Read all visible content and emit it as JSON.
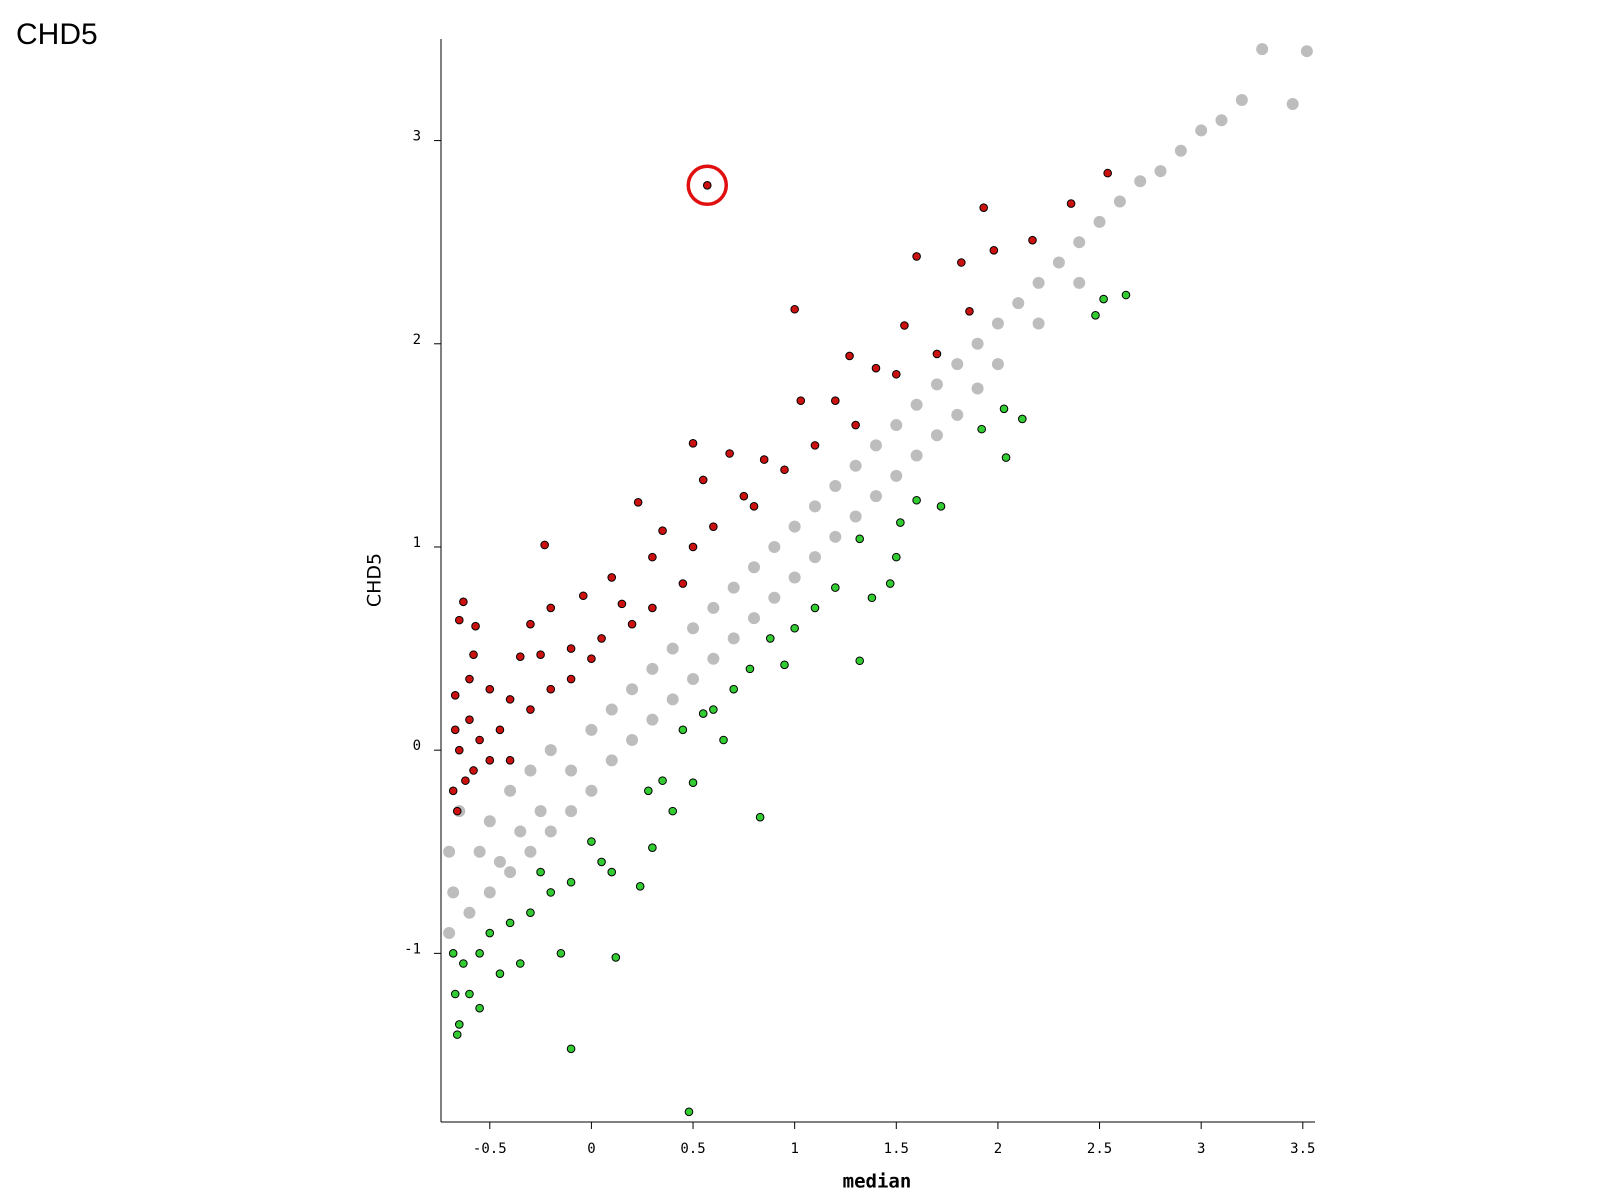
{
  "page_title": "CHD5",
  "chart_data": {
    "type": "scatter",
    "xlabel": "median",
    "ylabel": "CHD5",
    "xlim": [
      -0.74,
      3.56
    ],
    "ylim": [
      -1.83,
      3.5
    ],
    "xticks": [
      -0.5,
      0,
      0.5,
      1,
      1.5,
      2,
      2.5,
      3,
      3.5
    ],
    "yticks": [
      -1,
      0,
      1,
      2,
      3
    ],
    "series": [
      {
        "color": "#bdbdbd",
        "x": [
          -0.7,
          -0.7,
          -0.68,
          -0.65,
          -0.6,
          -0.55,
          -0.5,
          -0.5,
          -0.45,
          -0.4,
          -0.4,
          -0.35,
          -0.3,
          -0.3,
          -0.25,
          -0.2,
          -0.2,
          -0.1,
          -0.1,
          0,
          0,
          0.1,
          0.1,
          0.2,
          0.2,
          0.3,
          0.3,
          0.4,
          0.4,
          0.5,
          0.5,
          0.6,
          0.6,
          0.7,
          0.7,
          0.8,
          0.8,
          0.9,
          0.9,
          1.0,
          1.0,
          1.1,
          1.1,
          1.2,
          1.2,
          1.3,
          1.3,
          1.4,
          1.4,
          1.5,
          1.5,
          1.6,
          1.6,
          1.7,
          1.7,
          1.8,
          1.8,
          1.9,
          1.9,
          2.0,
          2.0,
          2.1,
          2.2,
          2.2,
          2.3,
          2.4,
          2.4,
          2.5,
          2.6,
          2.7,
          2.8,
          2.9,
          3.0,
          3.1,
          3.2,
          3.3,
          3.45,
          3.52
        ],
        "values": [
          -0.9,
          -0.5,
          -0.7,
          -0.3,
          -0.8,
          -0.5,
          -0.35,
          -0.7,
          -0.55,
          -0.2,
          -0.6,
          -0.4,
          -0.1,
          -0.5,
          -0.3,
          0,
          -0.4,
          -0.1,
          -0.3,
          0.1,
          -0.2,
          0.2,
          -0.05,
          0.3,
          0.05,
          0.4,
          0.15,
          0.5,
          0.25,
          0.6,
          0.35,
          0.7,
          0.45,
          0.8,
          0.55,
          0.9,
          0.65,
          1.0,
          0.75,
          1.1,
          0.85,
          1.2,
          0.95,
          1.3,
          1.05,
          1.4,
          1.15,
          1.5,
          1.25,
          1.6,
          1.35,
          1.7,
          1.45,
          1.8,
          1.55,
          1.9,
          1.65,
          2.0,
          1.78,
          2.1,
          1.9,
          2.2,
          2.3,
          2.1,
          2.4,
          2.5,
          2.3,
          2.6,
          2.7,
          2.8,
          2.85,
          2.95,
          3.05,
          3.1,
          3.2,
          3.45,
          3.18,
          3.44
        ]
      },
      {
        "color": "#cc1111",
        "x": [
          0.57,
          2.54,
          1.93,
          2.36,
          1.6,
          1.82,
          1.98,
          2.17,
          1.0,
          1.54,
          1.86,
          1.27,
          1.4,
          1.03,
          1.2,
          0.5,
          0.68,
          0.85,
          0.23,
          -0.23,
          0.55,
          0.35,
          0.75,
          0.95,
          0.1,
          0.3,
          0.5,
          -0.04,
          -0.2,
          -0.3,
          0.15,
          0.3,
          0.45,
          -0.57,
          -0.63,
          -0.65,
          -0.35,
          -0.25,
          -0.1,
          0.05,
          -0.58,
          -0.6,
          -0.5,
          -0.4,
          -0.3,
          -0.2,
          -0.1,
          -0.67,
          -0.67,
          -0.65,
          -0.6,
          -0.55,
          -0.45,
          -0.4,
          -0.68,
          -0.66,
          -0.62,
          -0.58,
          -0.5,
          0.6,
          0.8,
          1.1,
          1.3,
          1.5,
          1.7,
          0.0,
          0.2
        ],
        "values": [
          2.78,
          2.84,
          2.67,
          2.69,
          2.43,
          2.4,
          2.46,
          2.51,
          2.17,
          2.09,
          2.16,
          1.94,
          1.88,
          1.72,
          1.72,
          1.51,
          1.46,
          1.43,
          1.22,
          1.01,
          1.33,
          1.08,
          1.25,
          1.38,
          0.85,
          0.95,
          1.0,
          0.76,
          0.7,
          0.62,
          0.72,
          0.7,
          0.82,
          0.61,
          0.73,
          0.64,
          0.46,
          0.47,
          0.5,
          0.55,
          0.47,
          0.35,
          0.3,
          0.25,
          0.2,
          0.3,
          0.35,
          0.27,
          0.1,
          0,
          0.15,
          0.05,
          0.1,
          -0.05,
          -0.2,
          -0.3,
          -0.15,
          -0.1,
          -0.05,
          1.1,
          1.2,
          1.5,
          1.6,
          1.85,
          1.95,
          0.45,
          0.62
        ]
      },
      {
        "color": "#33cc33",
        "x": [
          2.63,
          2.52,
          2.48,
          2.12,
          2.03,
          1.92,
          2.04,
          1.72,
          1.6,
          1.52,
          1.32,
          1.5,
          1.47,
          1.38,
          1.32,
          1.1,
          1.0,
          0.88,
          0.95,
          0.78,
          0.7,
          0.83,
          0.6,
          0.55,
          0.45,
          0.5,
          0.35,
          0.28,
          0.3,
          0.24,
          0.12,
          0.1,
          0.0,
          0.05,
          -0.1,
          -0.2,
          -0.15,
          -0.1,
          0.48,
          -0.3,
          -0.35,
          -0.4,
          -0.5,
          -0.55,
          -0.6,
          -0.63,
          -0.65,
          -0.66,
          -0.68,
          -0.67,
          -0.55,
          -0.45,
          -0.25,
          0.65,
          0.4,
          1.2
        ],
        "values": [
          2.24,
          2.22,
          2.14,
          1.63,
          1.68,
          1.58,
          1.44,
          1.2,
          1.23,
          1.12,
          1.04,
          0.95,
          0.82,
          0.75,
          0.44,
          0.7,
          0.6,
          0.55,
          0.42,
          0.4,
          0.3,
          -0.33,
          0.2,
          0.18,
          0.1,
          -0.16,
          -0.15,
          -0.2,
          -0.48,
          -0.67,
          -1.02,
          -0.6,
          -0.45,
          -0.55,
          -0.65,
          -0.7,
          -1.0,
          -1.47,
          -1.78,
          -0.8,
          -1.05,
          -0.85,
          -0.9,
          -1.0,
          -1.2,
          -1.05,
          -1.35,
          -1.4,
          -1.0,
          -1.2,
          -1.27,
          -1.1,
          -0.6,
          0.05,
          -0.3,
          0.8
        ]
      }
    ]
  }
}
